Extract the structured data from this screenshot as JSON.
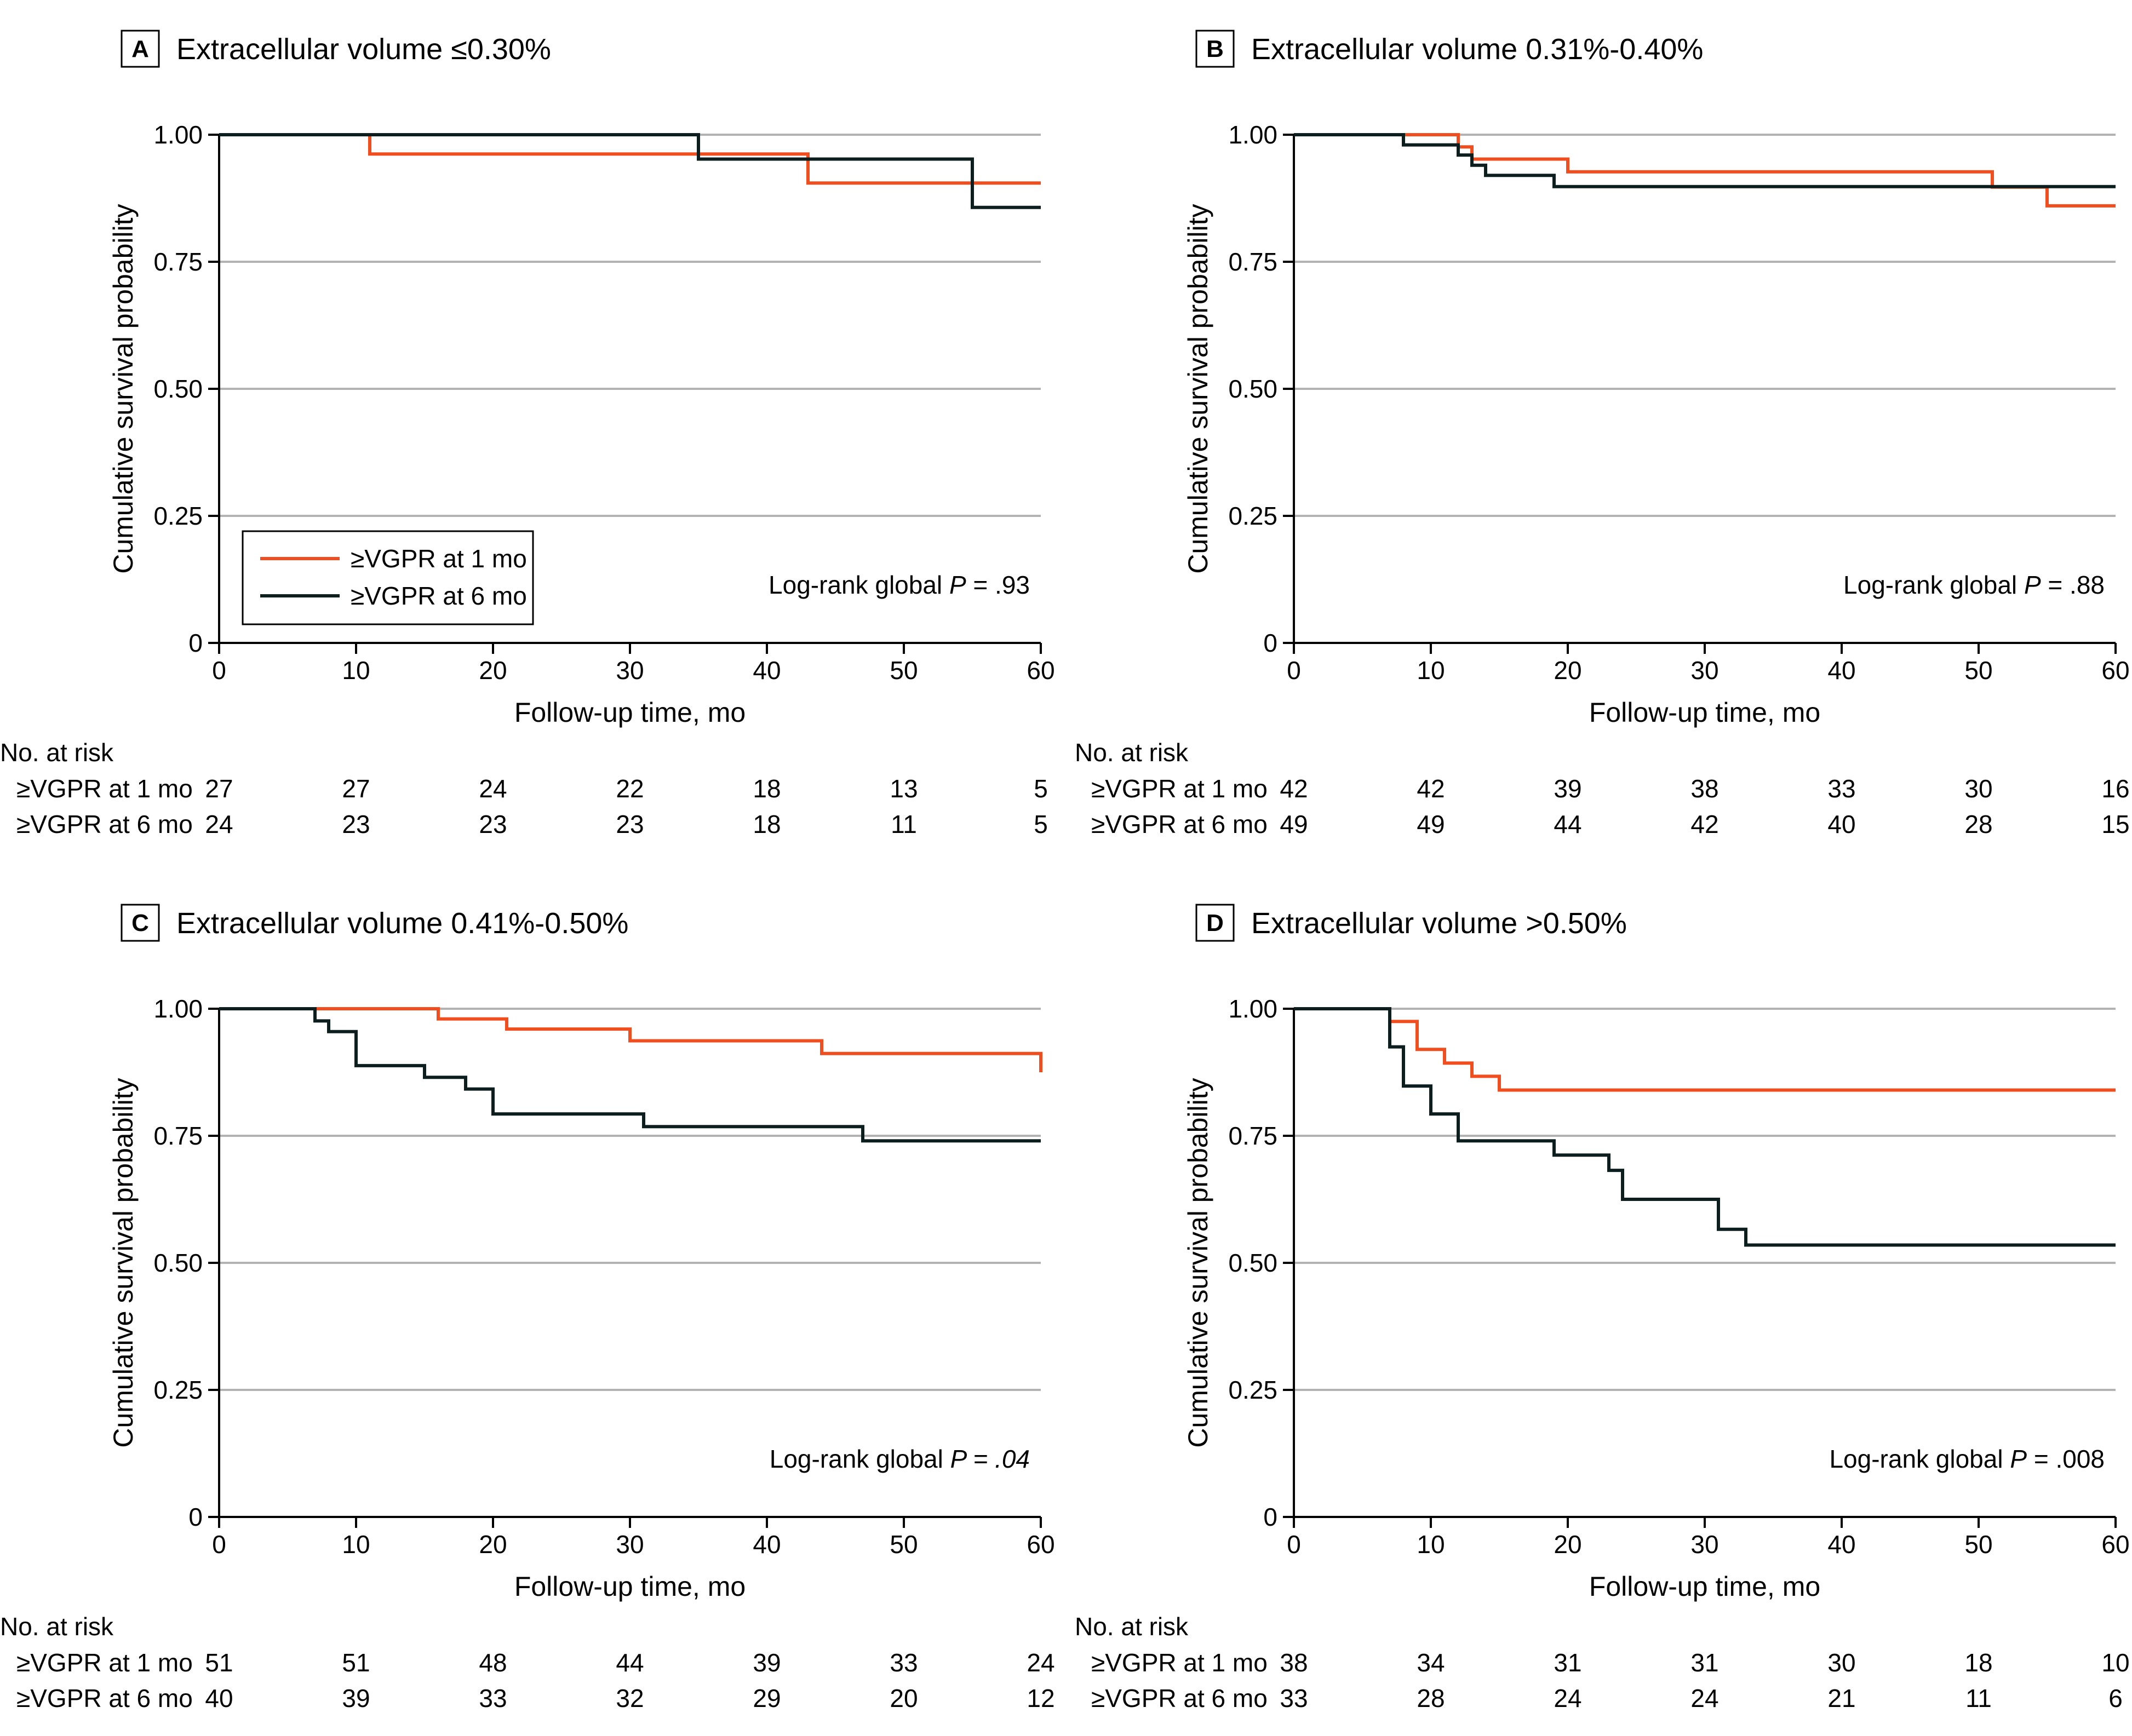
{
  "colors": {
    "orange": "#f04e1e",
    "black": "#0d1e1e",
    "grid": "#b3b3b3"
  },
  "common": {
    "xlabel": "Follow-up time, mo",
    "ylabel": "Cumulative survival probability",
    "x_ticks": [
      "0",
      "10",
      "20",
      "30",
      "40",
      "50",
      "60"
    ],
    "y_ticks": [
      "0",
      "0.25",
      "0.50",
      "0.75",
      "1.00"
    ],
    "risk_header": "No. at risk",
    "legend": [
      "≥VGPR at 1 mo",
      "≥VGPR at 6 mo"
    ],
    "pvalue_prefix": "Log-rank global ",
    "pvalue_symbol": "P"
  },
  "chart_data": [
    {
      "type": "line",
      "panel": "A",
      "title": "Extracellular volume ≤0.30%",
      "xlabel": "Follow-up time, mo",
      "ylabel": "Cumulative survival probability",
      "xlim": [
        0,
        60
      ],
      "ylim": [
        0,
        1
      ],
      "pvalue": " = .93",
      "pvalue_italic": false,
      "legend_shown": true,
      "series": [
        {
          "name": "≥VGPR at 1 mo",
          "color": "orange",
          "points": [
            [
              0,
              1.0
            ],
            [
              11,
              1.0
            ],
            [
              11,
              0.962
            ],
            [
              43,
              0.962
            ],
            [
              43,
              0.905
            ],
            [
              60,
              0.905
            ]
          ]
        },
        {
          "name": "≥VGPR at 6 mo",
          "color": "black",
          "points": [
            [
              0,
              1.0
            ],
            [
              35,
              1.0
            ],
            [
              35,
              0.952
            ],
            [
              55,
              0.952
            ],
            [
              55,
              0.857
            ],
            [
              60,
              0.857
            ]
          ]
        }
      ],
      "at_risk": {
        "times": [
          0,
          10,
          20,
          30,
          40,
          50,
          60
        ],
        "rows": [
          {
            "label": "≥VGPR at 1 mo",
            "values": [
              "27",
              "27",
              "24",
              "22",
              "18",
              "13",
              "5"
            ]
          },
          {
            "label": "≥VGPR at 6 mo",
            "values": [
              "24",
              "23",
              "23",
              "23",
              "18",
              "11",
              "5"
            ]
          }
        ]
      }
    },
    {
      "type": "line",
      "panel": "B",
      "title": "Extracellular volume 0.31%-0.40%",
      "xlabel": "Follow-up time, mo",
      "ylabel": "Cumulative survival probability",
      "xlim": [
        0,
        60
      ],
      "ylim": [
        0,
        1
      ],
      "pvalue": " = .88",
      "pvalue_italic": false,
      "legend_shown": false,
      "series": [
        {
          "name": "≥VGPR at 1 mo",
          "color": "orange",
          "points": [
            [
              0,
              1.0
            ],
            [
              12,
              1.0
            ],
            [
              12,
              0.976
            ],
            [
              13,
              0.976
            ],
            [
              13,
              0.952
            ],
            [
              20,
              0.952
            ],
            [
              20,
              0.927
            ],
            [
              51,
              0.927
            ],
            [
              51,
              0.897
            ],
            [
              55,
              0.897
            ],
            [
              55,
              0.86
            ],
            [
              60,
              0.86
            ]
          ]
        },
        {
          "name": "≥VGPR at 6 mo",
          "color": "black",
          "points": [
            [
              0,
              1.0
            ],
            [
              8,
              1.0
            ],
            [
              8,
              0.98
            ],
            [
              12,
              0.98
            ],
            [
              12,
              0.96
            ],
            [
              13,
              0.96
            ],
            [
              13,
              0.94
            ],
            [
              14,
              0.94
            ],
            [
              14,
              0.92
            ],
            [
              19,
              0.92
            ],
            [
              19,
              0.898
            ],
            [
              60,
              0.898
            ]
          ]
        }
      ],
      "at_risk": {
        "times": [
          0,
          10,
          20,
          30,
          40,
          50,
          60
        ],
        "rows": [
          {
            "label": "≥VGPR at 1 mo",
            "values": [
              "42",
              "42",
              "39",
              "38",
              "33",
              "30",
              "16"
            ]
          },
          {
            "label": "≥VGPR at 6 mo",
            "values": [
              "49",
              "49",
              "44",
              "42",
              "40",
              "28",
              "15"
            ]
          }
        ]
      }
    },
    {
      "type": "line",
      "panel": "C",
      "title": "Extracellular volume 0.41%-0.50%",
      "xlabel": "Follow-up time, mo",
      "ylabel": "Cumulative survival probability",
      "xlim": [
        0,
        60
      ],
      "ylim": [
        0,
        1
      ],
      "pvalue": " = .04",
      "pvalue_italic": true,
      "legend_shown": false,
      "series": [
        {
          "name": "≥VGPR at 1 mo",
          "color": "orange",
          "points": [
            [
              0,
              1.0
            ],
            [
              16,
              1.0
            ],
            [
              16,
              0.98
            ],
            [
              21,
              0.98
            ],
            [
              21,
              0.96
            ],
            [
              30,
              0.96
            ],
            [
              30,
              0.937
            ],
            [
              44,
              0.937
            ],
            [
              44,
              0.912
            ],
            [
              60,
              0.912
            ],
            [
              60,
              0.875
            ]
          ]
        },
        {
          "name": "≥VGPR at 6 mo",
          "color": "black",
          "points": [
            [
              0,
              1.0
            ],
            [
              7,
              1.0
            ],
            [
              7,
              0.976
            ],
            [
              8,
              0.976
            ],
            [
              8,
              0.955
            ],
            [
              10,
              0.955
            ],
            [
              10,
              0.888
            ],
            [
              15,
              0.888
            ],
            [
              15,
              0.865
            ],
            [
              18,
              0.865
            ],
            [
              18,
              0.842
            ],
            [
              20,
              0.842
            ],
            [
              20,
              0.793
            ],
            [
              31,
              0.793
            ],
            [
              31,
              0.768
            ],
            [
              47,
              0.768
            ],
            [
              47,
              0.74
            ],
            [
              60,
              0.74
            ]
          ]
        }
      ],
      "at_risk": {
        "times": [
          0,
          10,
          20,
          30,
          40,
          50,
          60
        ],
        "rows": [
          {
            "label": "≥VGPR at 1 mo",
            "values": [
              "51",
              "51",
              "48",
              "44",
              "39",
              "33",
              "24"
            ]
          },
          {
            "label": "≥VGPR at 6 mo",
            "values": [
              "40",
              "39",
              "33",
              "32",
              "29",
              "20",
              "12"
            ]
          }
        ]
      }
    },
    {
      "type": "line",
      "panel": "D",
      "title": "Extracellular volume >0.50%",
      "xlabel": "Follow-up time, mo",
      "ylabel": "Cumulative survival probability",
      "xlim": [
        0,
        60
      ],
      "ylim": [
        0,
        1
      ],
      "pvalue": " = .008",
      "pvalue_italic": false,
      "legend_shown": false,
      "series": [
        {
          "name": "≥VGPR at 1 mo",
          "color": "orange",
          "points": [
            [
              0,
              1.0
            ],
            [
              7,
              1.0
            ],
            [
              7,
              0.975
            ],
            [
              9,
              0.975
            ],
            [
              9,
              0.92
            ],
            [
              11,
              0.92
            ],
            [
              11,
              0.893
            ],
            [
              13,
              0.893
            ],
            [
              13,
              0.867
            ],
            [
              15,
              0.867
            ],
            [
              15,
              0.84
            ],
            [
              60,
              0.84
            ]
          ]
        },
        {
          "name": "≥VGPR at 6 mo",
          "color": "black",
          "points": [
            [
              0,
              1.0
            ],
            [
              7,
              1.0
            ],
            [
              7,
              0.925
            ],
            [
              8,
              0.925
            ],
            [
              8,
              0.848
            ],
            [
              10,
              0.848
            ],
            [
              10,
              0.793
            ],
            [
              12,
              0.793
            ],
            [
              12,
              0.74
            ],
            [
              19,
              0.74
            ],
            [
              19,
              0.712
            ],
            [
              23,
              0.712
            ],
            [
              23,
              0.682
            ],
            [
              24,
              0.682
            ],
            [
              24,
              0.625
            ],
            [
              31,
              0.625
            ],
            [
              31,
              0.566
            ],
            [
              33,
              0.566
            ],
            [
              33,
              0.535
            ],
            [
              60,
              0.535
            ]
          ]
        }
      ],
      "at_risk": {
        "times": [
          0,
          10,
          20,
          30,
          40,
          50,
          60
        ],
        "rows": [
          {
            "label": "≥VGPR at 1 mo",
            "values": [
              "38",
              "34",
              "31",
              "31",
              "30",
              "18",
              "10"
            ]
          },
          {
            "label": "≥VGPR at 6 mo",
            "values": [
              "33",
              "28",
              "24",
              "24",
              "21",
              "11",
              "6"
            ]
          }
        ]
      }
    }
  ]
}
